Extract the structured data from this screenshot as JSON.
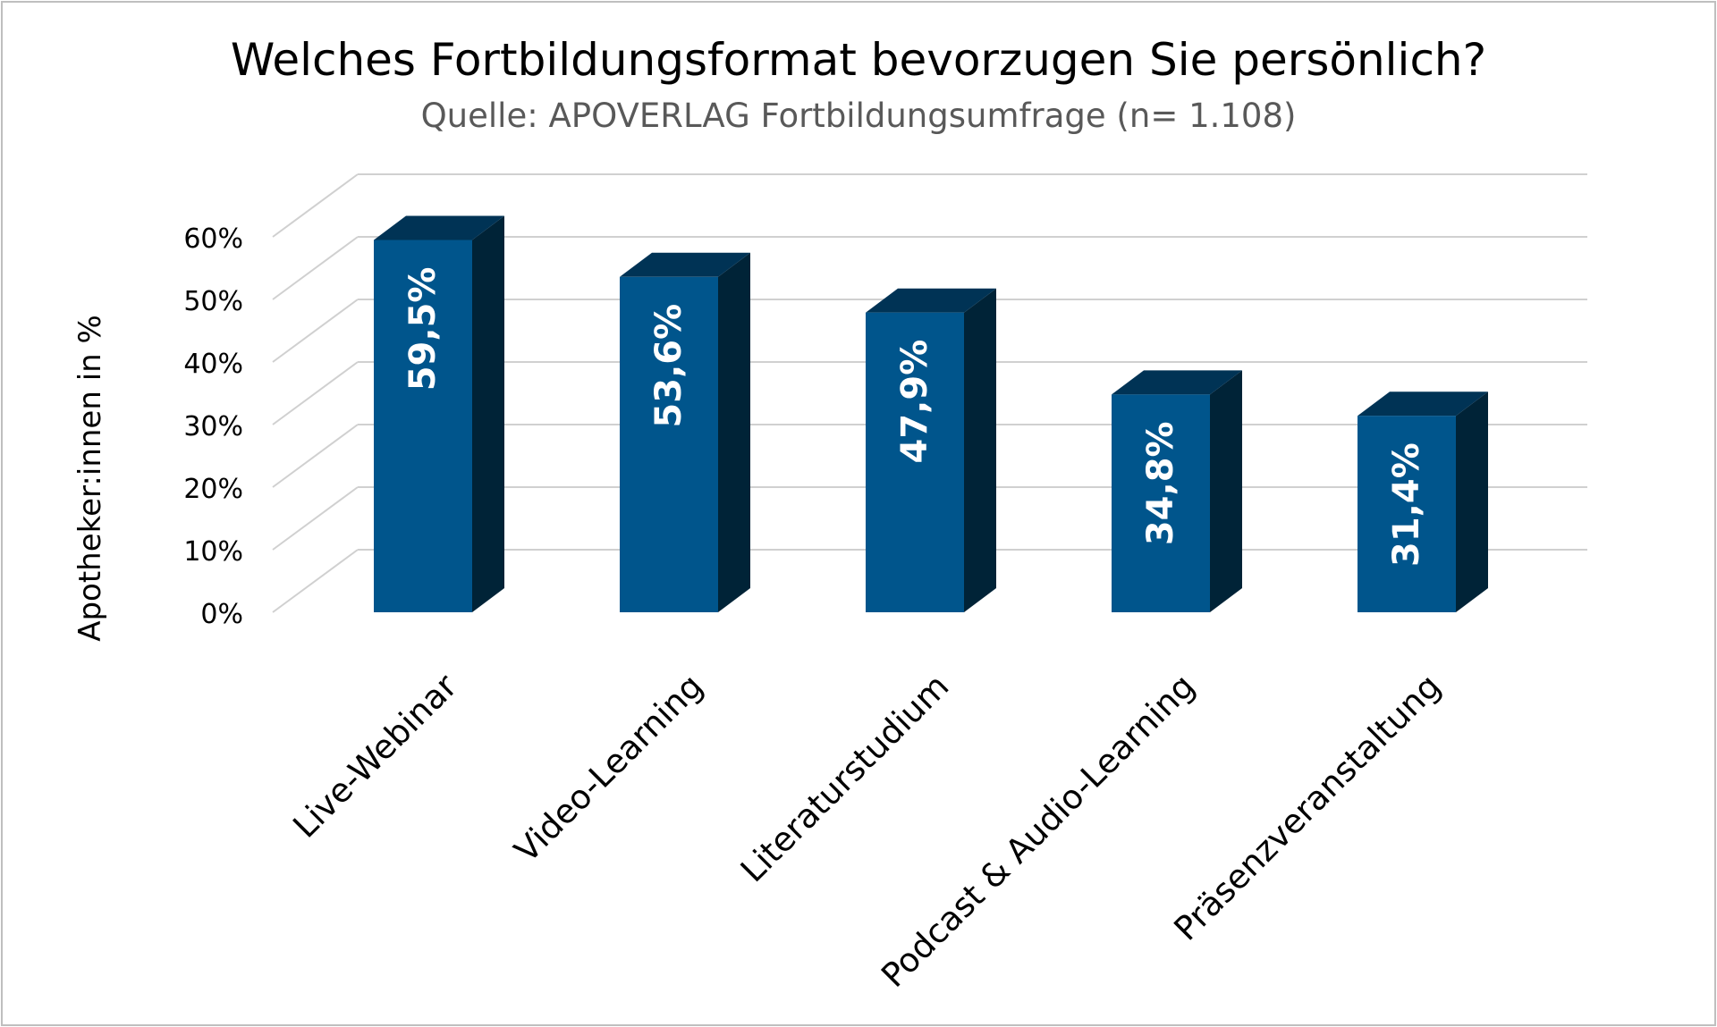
{
  "chart_data": {
    "type": "bar",
    "title": "Welches Fortbildungsformat bevorzugen Sie persönlich?",
    "subtitle": "Quelle: APOVERLAG Fortbildungsumfrage (n= 1.108)",
    "ylabel": "Apotheker:innen in %",
    "xlabel": "",
    "ylim": [
      0,
      60
    ],
    "yticks": [
      "0%",
      "10%",
      "20%",
      "30%",
      "40%",
      "50%",
      "60%"
    ],
    "categories": [
      "Live-Webinar",
      "Video-Learning",
      "Literaturstudium",
      "Podcast & Audio-Learning",
      "Präsenzveranstaltung"
    ],
    "values": [
      59.5,
      53.6,
      47.9,
      34.8,
      31.4
    ],
    "value_labels": [
      "59,5%",
      "53,6%",
      "47,9%",
      "34,8%",
      "31,4%"
    ],
    "grid": true,
    "style": "3d-column",
    "colors": {
      "front": "#00558c",
      "side": "#002337",
      "top": "#003355",
      "grid": "#d0d0d0"
    }
  }
}
